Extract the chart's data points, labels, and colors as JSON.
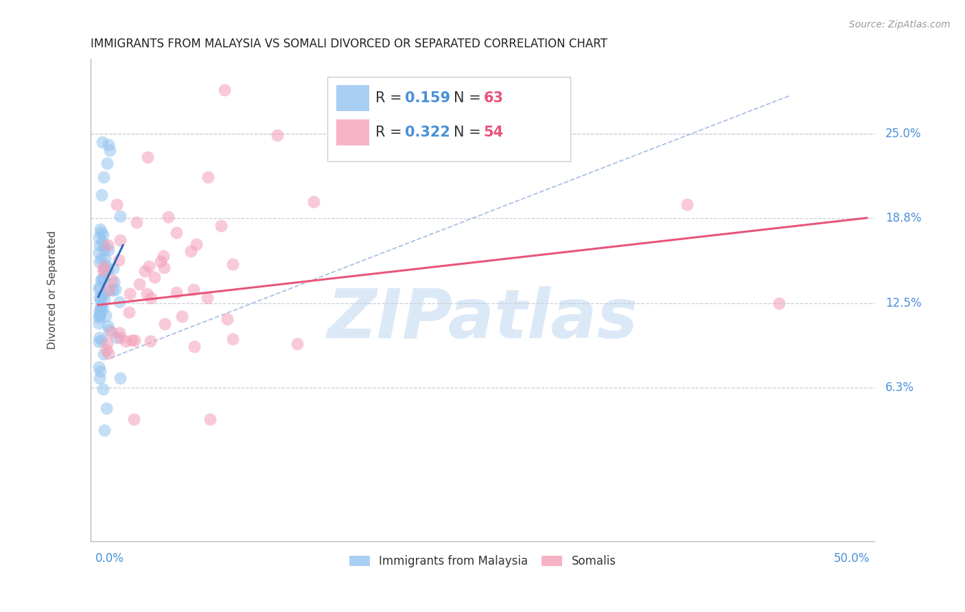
{
  "title": "IMMIGRANTS FROM MALAYSIA VS SOMALI DIVORCED OR SEPARATED CORRELATION CHART",
  "source": "Source: ZipAtlas.com",
  "watermark": "ZIPatlas",
  "ylabel_label": "Divorced or Separated",
  "ytick_labels": [
    "25.0%",
    "18.8%",
    "12.5%",
    "6.3%"
  ],
  "ytick_values": [
    0.25,
    0.188,
    0.125,
    0.063
  ],
  "xlim": [
    -0.005,
    0.505
  ],
  "ylim": [
    -0.05,
    0.305
  ],
  "blue_color": "#94c4f0",
  "pink_color": "#f4a0b8",
  "blue_line_color": "#2a6db5",
  "pink_line_color": "#e8547a",
  "dashed_line_color": "#a0b8e0",
  "grid_color": "#c8cdd8",
  "legend_R_blue": "0.159",
  "legend_N_blue": "63",
  "legend_R_pink": "0.322",
  "legend_N_pink": "54",
  "legend_label_blue": "Immigrants from Malaysia",
  "legend_label_pink": "Somalis",
  "title_fontsize": 12,
  "source_fontsize": 10,
  "axis_label_fontsize": 11,
  "tick_fontsize": 12,
  "legend_fontsize": 15,
  "watermark_fontsize": 72,
  "scatter_size": 170,
  "scatter_alpha": 0.55,
  "blue_line_x": [
    0.0,
    0.016
  ],
  "blue_line_y": [
    0.13,
    0.168
  ],
  "pink_line_x": [
    0.0,
    0.5
  ],
  "pink_line_y": [
    0.124,
    0.188
  ]
}
